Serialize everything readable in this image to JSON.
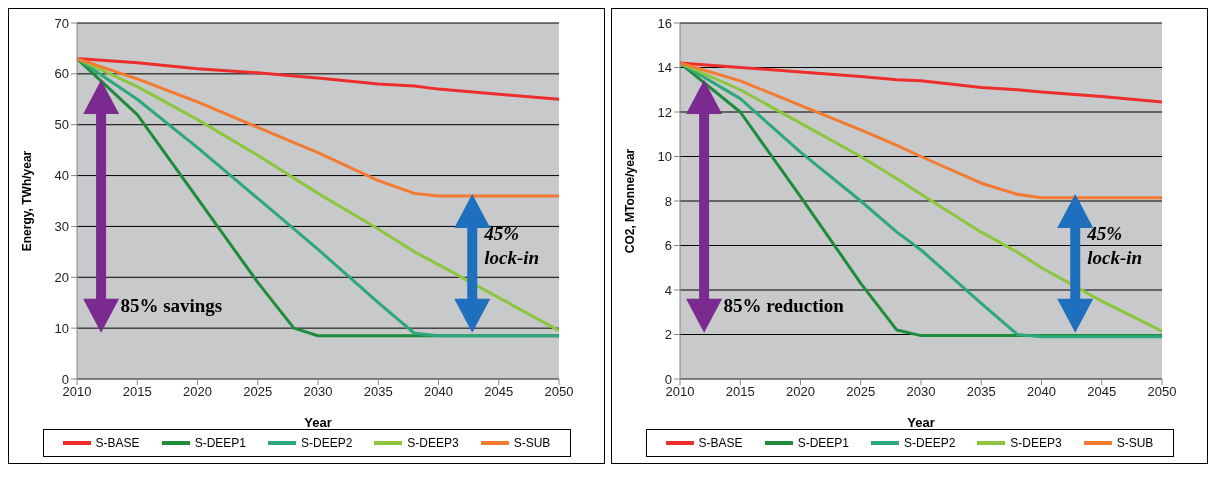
{
  "chart_data": [
    {
      "type": "line",
      "xlabel": "Year",
      "ylabel": "Energy, TWh/year",
      "x": [
        2010,
        2015,
        2020,
        2025,
        2028,
        2030,
        2035,
        2038,
        2040,
        2045,
        2050
      ],
      "series": [
        {
          "name": "S-BASE",
          "color": "#ee2d2d",
          "values": [
            63,
            62.2,
            61,
            60.2,
            59.6,
            59.2,
            58,
            57.6,
            57,
            56,
            55
          ]
        },
        {
          "name": "S-DEEP1",
          "color": "#1e8c3c",
          "values": [
            63,
            52,
            35.5,
            19,
            10,
            8.5,
            8.5,
            8.5,
            8.5,
            8.5,
            8.5
          ]
        },
        {
          "name": "S-DEEP2",
          "color": "#2ca87a",
          "values": [
            63,
            55,
            45.5,
            35.5,
            29.5,
            25.5,
            15,
            9,
            8.5,
            8.5,
            8.5
          ]
        },
        {
          "name": "S-DEEP3",
          "color": "#8cc63f",
          "values": [
            63,
            57.5,
            51,
            44,
            39.5,
            36.5,
            29.5,
            25,
            22.5,
            16,
            9.5
          ]
        },
        {
          "name": "S-SUB",
          "color": "#f47a30",
          "values": [
            63,
            59,
            54.5,
            49.5,
            46.5,
            44.5,
            39,
            36.5,
            36,
            36,
            36
          ]
        }
      ],
      "xlim": [
        2010,
        2050
      ],
      "xticks": [
        2010,
        2015,
        2020,
        2025,
        2030,
        2035,
        2040,
        2045,
        2050
      ],
      "ylim": [
        0,
        70
      ],
      "yticks": [
        0,
        10,
        20,
        30,
        40,
        50,
        60,
        70
      ],
      "grid": "y",
      "legend": "bottom",
      "marker": "none",
      "line_style": "solid",
      "annotations": [
        "85% savings",
        "45% lock-in"
      ]
    },
    {
      "type": "line",
      "xlabel": "Year",
      "ylabel": "CO2, MTonne/year",
      "x": [
        2010,
        2015,
        2020,
        2025,
        2028,
        2030,
        2035,
        2038,
        2040,
        2045,
        2050
      ],
      "series": [
        {
          "name": "S-BASE",
          "color": "#ee2d2d",
          "values": [
            14.2,
            14,
            13.8,
            13.6,
            13.45,
            13.4,
            13.1,
            13,
            12.9,
            12.7,
            12.45
          ]
        },
        {
          "name": "S-DEEP1",
          "color": "#1e8c3c",
          "values": [
            14.2,
            12,
            8.2,
            4.3,
            2.2,
            1.95,
            1.95,
            1.95,
            1.95,
            1.95,
            1.95
          ]
        },
        {
          "name": "S-DEEP2",
          "color": "#2ca87a",
          "values": [
            14.2,
            12.6,
            10.2,
            8,
            6.6,
            5.8,
            3.4,
            2,
            1.9,
            1.9,
            1.9
          ]
        },
        {
          "name": "S-DEEP3",
          "color": "#8cc63f",
          "values": [
            14.2,
            13,
            11.5,
            10,
            9,
            8.3,
            6.6,
            5.7,
            5,
            3.5,
            2.15
          ]
        },
        {
          "name": "S-SUB",
          "color": "#f47a30",
          "values": [
            14.2,
            13.4,
            12.3,
            11.2,
            10.5,
            10,
            8.8,
            8.3,
            8.15,
            8.15,
            8.15
          ]
        }
      ],
      "xlim": [
        2010,
        2050
      ],
      "xticks": [
        2010,
        2015,
        2020,
        2025,
        2030,
        2035,
        2040,
        2045,
        2050
      ],
      "ylim": [
        0,
        16
      ],
      "yticks": [
        0,
        2,
        4,
        6,
        8,
        10,
        12,
        14,
        16
      ],
      "grid": "y",
      "legend": "bottom",
      "marker": "none",
      "line_style": "solid",
      "annotations": [
        "85% reduction",
        "45% lock-in"
      ]
    }
  ]
}
